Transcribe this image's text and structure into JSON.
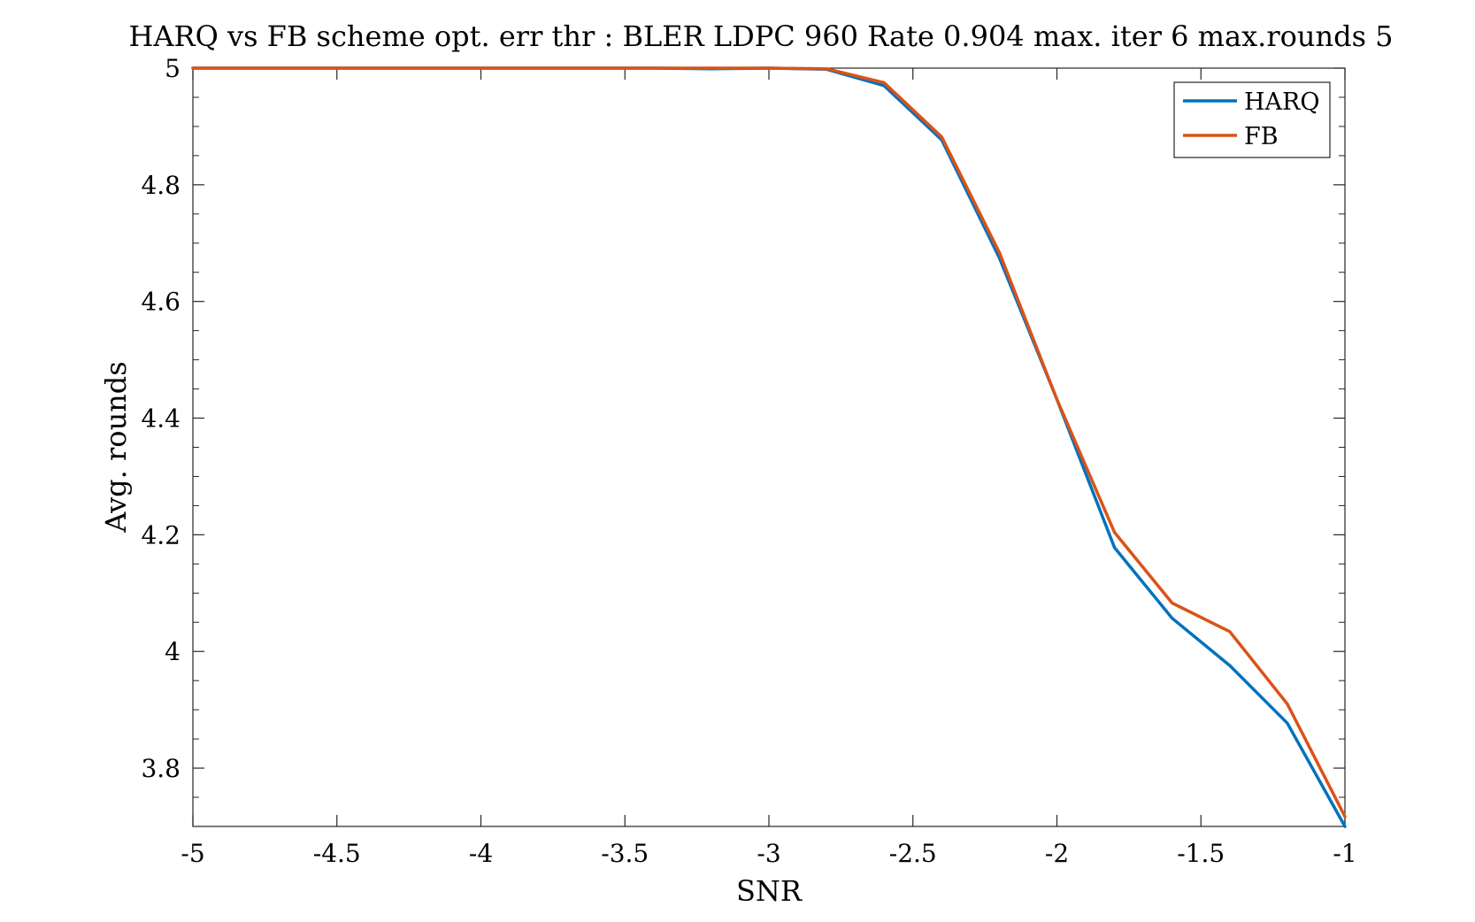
{
  "chart_data": {
    "type": "line",
    "title": "HARQ vs FB scheme opt. err thr : BLER LDPC 960 Rate 0.904 max. iter 6 max.rounds 5",
    "xlabel": "SNR",
    "ylabel": "Avg. rounds",
    "xlim": [
      -5,
      -1
    ],
    "ylim": [
      3.7,
      5
    ],
    "x_ticks": [
      -5,
      -4.5,
      -4,
      -3.5,
      -3,
      -2.5,
      -2,
      -1.5,
      -1
    ],
    "x_tick_labels": [
      "-5",
      "-4.5",
      "-4",
      "-3.5",
      "-3",
      "-2.5",
      "-2",
      "-1.5",
      "-1"
    ],
    "y_ticks": [
      3.8,
      4,
      4.2,
      4.4,
      4.6,
      4.8,
      5
    ],
    "y_tick_labels": [
      "3.8",
      "4",
      "4.2",
      "4.4",
      "4.6",
      "4.8",
      "5"
    ],
    "grid": false,
    "legend_position": "top-right",
    "x": [
      -5,
      -4.8,
      -4.6,
      -4.4,
      -4.2,
      -4,
      -3.8,
      -3.6,
      -3.4,
      -3.2,
      -3,
      -2.8,
      -2.6,
      -2.4,
      -2.2,
      -2,
      -1.8,
      -1.6,
      -1.4,
      -1.2,
      -1
    ],
    "series": [
      {
        "name": "HARQ",
        "color": "#0072BD",
        "values": [
          5,
          5,
          5,
          5,
          5,
          5,
          5,
          5,
          5,
          4.999,
          5,
          4.998,
          4.97,
          4.877,
          4.675,
          4.432,
          4.178,
          4.057,
          3.976,
          3.877,
          3.7
        ]
      },
      {
        "name": "FB",
        "color": "#D95319",
        "values": [
          5,
          5,
          5,
          5,
          5,
          5,
          5,
          5,
          5,
          5,
          5,
          4.999,
          4.975,
          4.882,
          4.684,
          4.432,
          4.204,
          4.083,
          4.034,
          3.91,
          3.717
        ]
      }
    ]
  }
}
